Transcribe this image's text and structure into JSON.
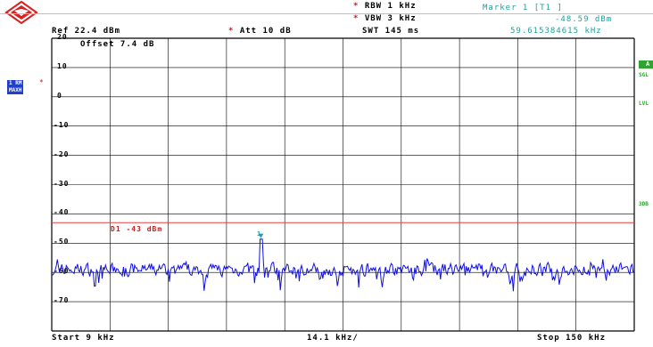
{
  "header": {
    "rbw": "RBW 1 kHz",
    "vbw": "VBW 3 kHz",
    "swt": "SWT 145 ms",
    "ref": "Ref  22.4 dBm",
    "att": "Att  10 dB",
    "marker_label": "Marker 1 [T1 ]",
    "marker_level": "-48.59 dBm",
    "marker_freq": "59.615384615 kHz",
    "star": "*"
  },
  "overlay": {
    "offset": "Offset  7.4 dB",
    "d1_label": "D1 -43 dBm",
    "marker_number": "1"
  },
  "side": {
    "trace_mode_1": "1 RM",
    "trace_mode_2": "MAXH",
    "trace_star": "*",
    "right_a": "A",
    "right_sgl": "SGL",
    "right_lvl": "LVL",
    "right_3db": "3DB"
  },
  "footer": {
    "start": "Start  9 kHz",
    "span": "14.1 kHz/",
    "stop": "Stop  150 kHz"
  },
  "colors": {
    "trace": "#1010e0",
    "display_line": "#e04040",
    "grid": "#000000",
    "marker": "#20a0a0",
    "sidebox": "#1f3fd0",
    "right_tag": "#2fa52f"
  },
  "chart_data": {
    "type": "line",
    "x_unit": "kHz",
    "y_unit": "dBm",
    "xlim": [
      9,
      150
    ],
    "ylim": [
      -80,
      20
    ],
    "y_tick_labels": [
      "20",
      "10",
      "0",
      "-10",
      "-20",
      "-30",
      "-40",
      "-50",
      "-60",
      "-70"
    ],
    "y_ticks": [
      20,
      10,
      0,
      -10,
      -20,
      -30,
      -40,
      -50,
      -60,
      -70
    ],
    "display_line": -43,
    "marker": {
      "x": 59.615384615,
      "y": -48.59
    },
    "trace_noise_floor": -59,
    "grid": true
  }
}
